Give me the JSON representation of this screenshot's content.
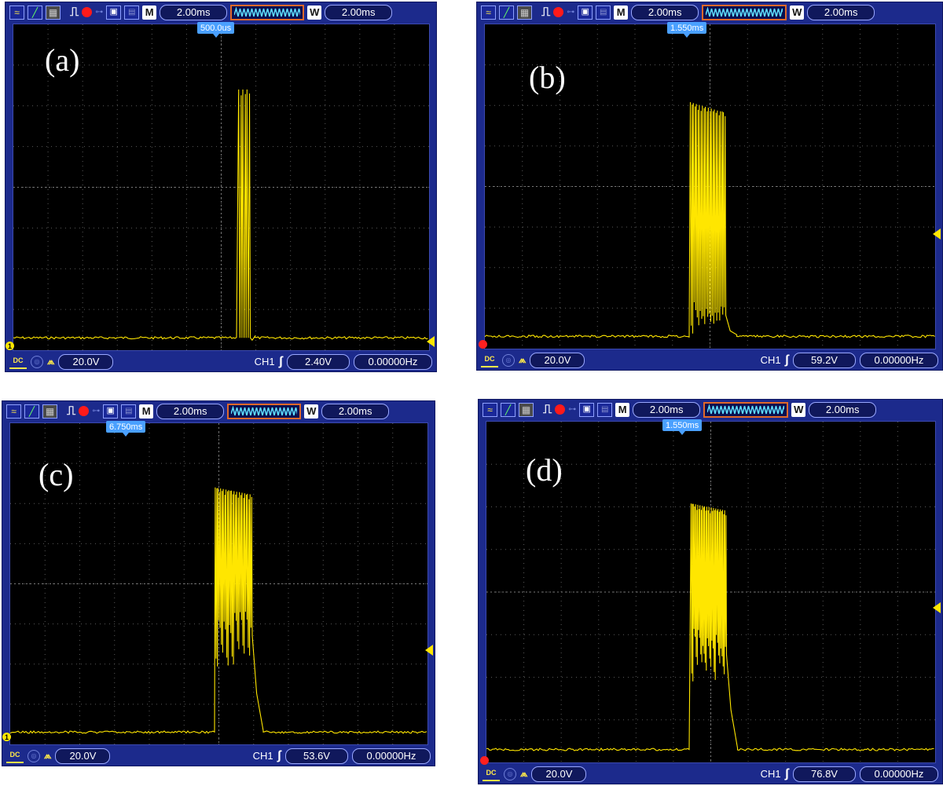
{
  "panels": [
    {
      "id": "a",
      "caption": "(a)",
      "timebase": "2.00ms",
      "window_timebase": "2.00ms",
      "memory_label": "M",
      "window_label": "W",
      "trigger_time": "500.0us",
      "volts_div": "20.0V",
      "channel": "CH1",
      "trigger_level": "2.40V",
      "frequency": "0.00000Hz",
      "trace_color": "#ffe600",
      "ch_marker_color": "#ffe600",
      "ch_marker_text": "1",
      "burst": {
        "start": 0.54,
        "end": 0.57,
        "spikes": 3,
        "top_fraction": 0.2,
        "floor_fraction": 0.98,
        "decay": "fast"
      }
    },
    {
      "id": "b",
      "caption": "(b)",
      "timebase": "2.00ms",
      "window_timebase": "2.00ms",
      "memory_label": "M",
      "window_label": "W",
      "trigger_time": "1.550ms",
      "volts_div": "20.0V",
      "channel": "CH1",
      "trigger_level": "59.2V",
      "frequency": "0.00000Hz",
      "trace_color": "#ffe600",
      "ch_marker_color": "#ff2020",
      "ch_marker_text": "",
      "burst": {
        "start": 0.455,
        "end": 0.535,
        "spikes": 12,
        "top_fraction": 0.24,
        "floor_fraction": 0.92,
        "decay": "medium"
      }
    },
    {
      "id": "c",
      "caption": "(c)",
      "timebase": "2.00ms",
      "window_timebase": "2.00ms",
      "memory_label": "M",
      "window_label": "W",
      "trigger_time": "6.750ms",
      "volts_div": "20.0V",
      "channel": "CH1",
      "trigger_level": "53.6V",
      "frequency": "0.00000Hz",
      "trace_color": "#ffe600",
      "ch_marker_color": "#ffe600",
      "ch_marker_text": "1",
      "burst": {
        "start": 0.49,
        "end": 0.58,
        "spikes": 14,
        "top_fraction": 0.2,
        "floor_fraction": 0.66,
        "decay": "slow"
      }
    },
    {
      "id": "d",
      "caption": "(d)",
      "timebase": "2.00ms",
      "window_timebase": "2.00ms",
      "memory_label": "M",
      "window_label": "W",
      "trigger_time": "1.550ms",
      "volts_div": "20.0V",
      "channel": "CH1",
      "trigger_level": "76.8V",
      "frequency": "0.00000Hz",
      "trace_color": "#ffe600",
      "ch_marker_color": "#ff2020",
      "ch_marker_text": "",
      "burst": {
        "start": 0.455,
        "end": 0.535,
        "spikes": 16,
        "top_fraction": 0.24,
        "floor_fraction": 0.67,
        "decay": "medium"
      }
    }
  ]
}
